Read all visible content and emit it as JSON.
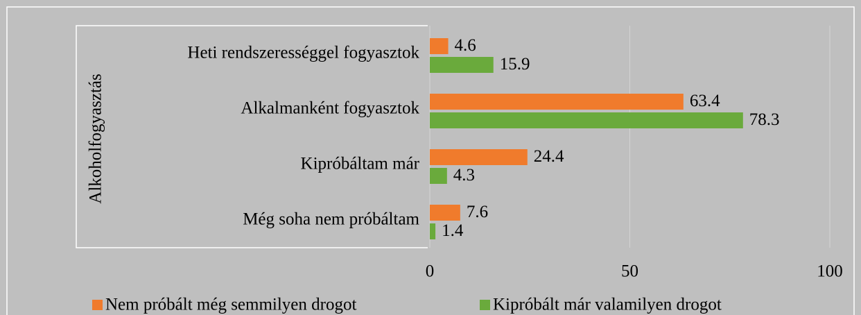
{
  "chart_data": {
    "type": "bar",
    "orientation": "horizontal",
    "y_label": "Alkoholfogyasztás",
    "categories": [
      "Heti rendszerességgel fogyasztok",
      "Alkalmanként fogyasztok",
      "Kipróbáltam már",
      "Még soha nem próbáltam"
    ],
    "series": [
      {
        "name": "Nem próbált még semmilyen drogot",
        "color": "#f07b2c",
        "values": [
          4.6,
          63.4,
          24.4,
          7.6
        ]
      },
      {
        "name": "Kipróbált már valamilyen drogot",
        "color": "#6aaa3c",
        "values": [
          15.9,
          78.3,
          4.3,
          1.4
        ]
      }
    ],
    "xlim": [
      0,
      100
    ],
    "xticks": [
      0,
      50,
      100
    ],
    "grid": true,
    "legend": "bottom"
  }
}
